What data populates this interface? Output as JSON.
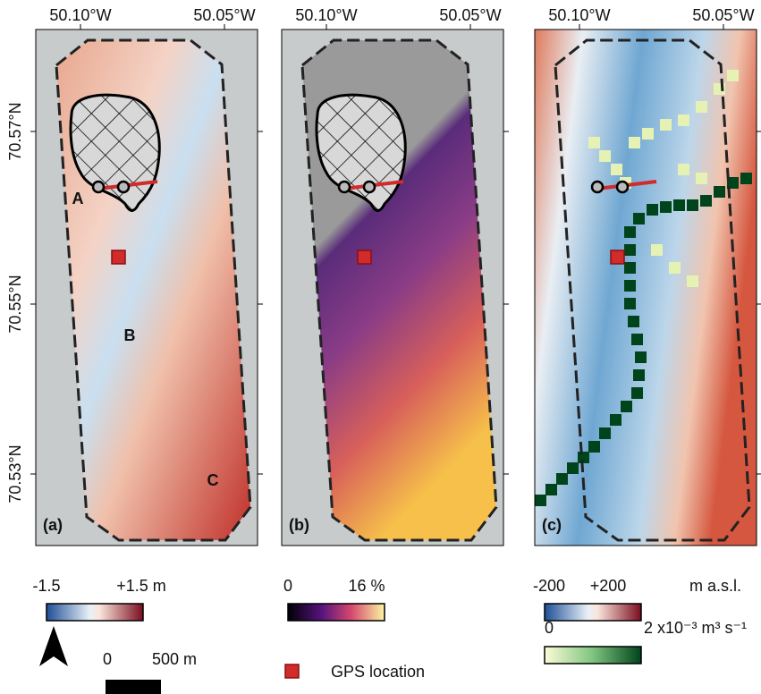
{
  "panels": [
    {
      "label": "(a)",
      "top_ticks": [
        "50.10°W",
        "50.05°W"
      ]
    },
    {
      "label": "(b)",
      "top_ticks": [
        "50.10°W",
        "50.05°W"
      ]
    },
    {
      "label": "(c)",
      "top_ticks": [
        "50.10°W",
        "50.05°W"
      ]
    }
  ],
  "lat_ticks": [
    "70.57°N",
    "70.55°N",
    "70.53°N"
  ],
  "site_labels": [
    "A",
    "B",
    "C"
  ],
  "colorbars": [
    {
      "min_label": "-1.5",
      "max_label": "+1.5 m"
    },
    {
      "min_label": "0",
      "max_label": "16 %"
    },
    {
      "min_label": "-200",
      "max_label": "+200",
      "unit": "m a.s.l."
    },
    {
      "min_label": "0",
      "max_label": "2 x10⁻³ m³ s⁻¹"
    }
  ],
  "scale_bar": {
    "start": "0",
    "end": "500 m"
  },
  "legend": {
    "gps": "GPS location"
  }
}
